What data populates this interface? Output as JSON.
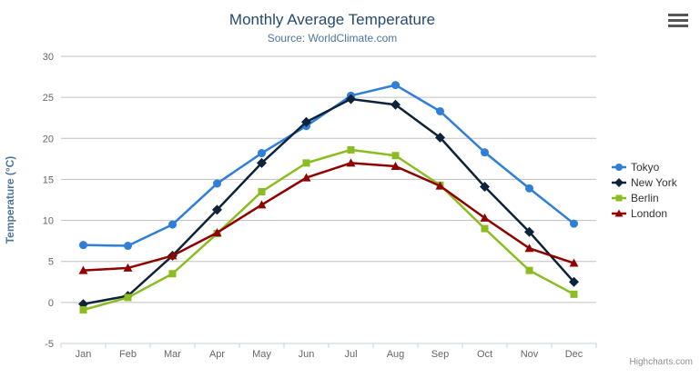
{
  "chart_data": {
    "type": "line",
    "title": "Monthly Average Temperature",
    "subtitle": "Source: WorldClimate.com",
    "categories": [
      "Jan",
      "Feb",
      "Mar",
      "Apr",
      "May",
      "Jun",
      "Jul",
      "Aug",
      "Sep",
      "Oct",
      "Nov",
      "Dec"
    ],
    "series": [
      {
        "name": "Tokyo",
        "color": "#2f7ed8",
        "marker": "circle",
        "values": [
          7.0,
          6.9,
          9.5,
          14.5,
          18.2,
          21.5,
          25.2,
          26.5,
          23.3,
          18.3,
          13.9,
          9.6
        ]
      },
      {
        "name": "New York",
        "color": "#0d233a",
        "marker": "diamond",
        "values": [
          -0.2,
          0.8,
          5.7,
          11.3,
          17.0,
          22.0,
          24.8,
          24.1,
          20.1,
          14.1,
          8.6,
          2.5
        ]
      },
      {
        "name": "Berlin",
        "color": "#8bbc21",
        "marker": "square",
        "values": [
          -0.9,
          0.6,
          3.5,
          8.4,
          13.5,
          17.0,
          18.6,
          17.9,
          14.3,
          9.0,
          3.9,
          1.0
        ]
      },
      {
        "name": "London",
        "color": "#910000",
        "marker": "triangle",
        "values": [
          3.9,
          4.2,
          5.7,
          8.5,
          11.9,
          15.2,
          17.0,
          16.6,
          14.2,
          10.3,
          6.6,
          4.8
        ]
      }
    ],
    "xlabel": "",
    "ylabel": "Temperature (°C)",
    "ylim": [
      -5,
      30
    ],
    "ytick_step": 5,
    "grid": true,
    "legend_position": "right"
  },
  "colors": {
    "title": "#274b6d",
    "subtitle": "#4d759e",
    "axis_title": "#4d759e",
    "tick_label": "#666666",
    "grid_line": "#C0C0C0",
    "axis_line": "#C0D0E0",
    "legend_text": "#333333",
    "credits_text": "#909090"
  },
  "icons": {
    "context_menu": "hamburger-menu-icon"
  },
  "credits": {
    "label": "Highcharts.com"
  }
}
